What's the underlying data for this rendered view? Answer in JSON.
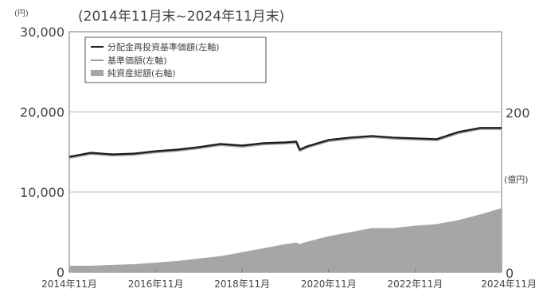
{
  "chart_data": {
    "type": "line",
    "title": "(2014年11月末~2024年11月末)",
    "y_left": {
      "unit": "(円)",
      "ticks": [
        0,
        10000,
        20000,
        30000
      ],
      "tick_labels": [
        "0",
        "10,000",
        "20,000",
        "30,000"
      ],
      "ylim": [
        0,
        30000
      ]
    },
    "y_right": {
      "unit": "(億円)",
      "ticks": [
        0,
        200
      ],
      "tick_labels": [
        "0",
        "200"
      ],
      "ylim": [
        0,
        300
      ]
    },
    "x_tick_labels": [
      "2014年11月",
      "2016年11月",
      "2018年11月",
      "2020年11月",
      "2022年11月",
      "2024年11月"
    ],
    "legend": {
      "placement": "top-left",
      "entries": [
        "分配金再投資基準価額(左軸)",
        "基準価額(左軸)",
        "純資産総額(右軸)"
      ]
    },
    "grid": "horizontal",
    "x": [
      "2014-11",
      "2015-05",
      "2015-11",
      "2016-05",
      "2016-11",
      "2017-05",
      "2017-11",
      "2018-05",
      "2018-11",
      "2019-05",
      "2019-11",
      "2020-02",
      "2020-03",
      "2020-05",
      "2020-11",
      "2021-05",
      "2021-11",
      "2022-05",
      "2022-11",
      "2023-05",
      "2023-11",
      "2024-05",
      "2024-11"
    ],
    "series": [
      {
        "name": "分配金再投資基準価額(左軸)",
        "axis": "left",
        "color": "#1a1a1a",
        "values": [
          14400,
          14900,
          14700,
          14800,
          15100,
          15300,
          15600,
          16000,
          15800,
          16100,
          16200,
          16300,
          15300,
          15700,
          16500,
          16800,
          17000,
          16800,
          16700,
          16600,
          17500,
          18000,
          18000
        ]
      },
      {
        "name": "基準価額(左軸)",
        "axis": "left",
        "color": "#9a9a9a",
        "values": [
          14300,
          14800,
          14600,
          14700,
          15000,
          15200,
          15500,
          15900,
          15700,
          16000,
          16100,
          16200,
          15200,
          15600,
          16400,
          16700,
          16900,
          16700,
          16600,
          16500,
          17400,
          17900,
          17900
        ]
      },
      {
        "name": "純資産総額(右軸)",
        "axis": "right",
        "color": "#a6a6a6",
        "type": "area",
        "values": [
          8,
          8,
          9,
          10,
          12,
          14,
          17,
          20,
          25,
          30,
          35,
          37,
          35,
          38,
          45,
          50,
          55,
          55,
          58,
          60,
          65,
          72,
          80
        ]
      }
    ]
  }
}
